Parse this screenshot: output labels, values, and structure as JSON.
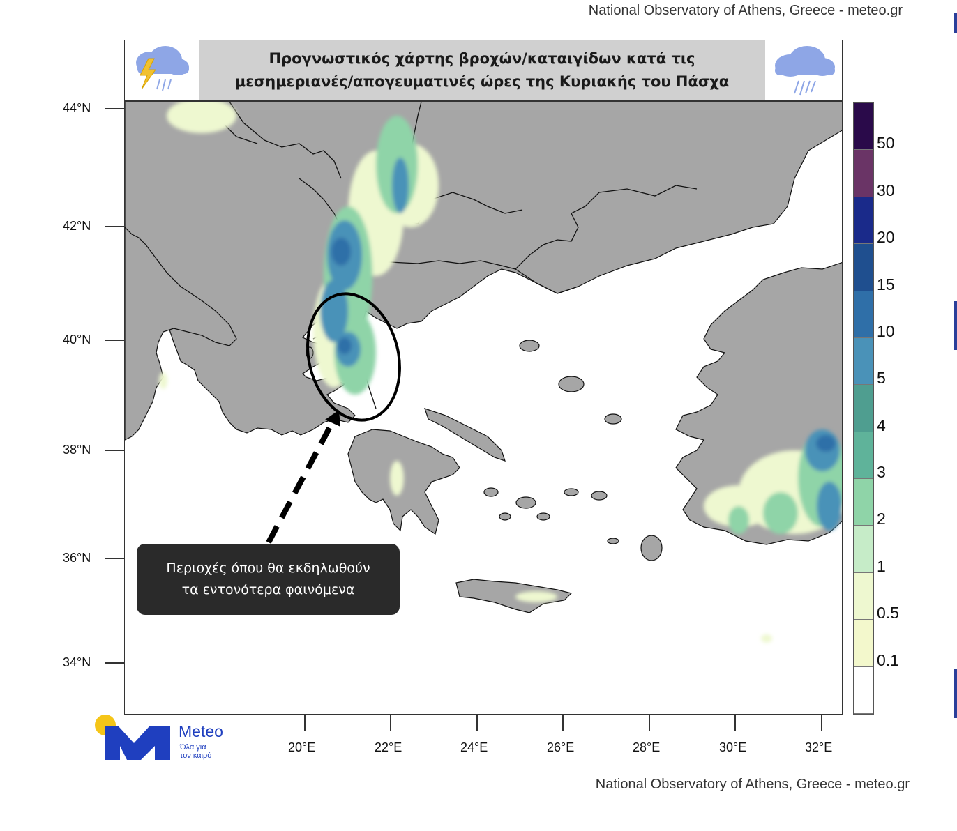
{
  "credits": {
    "top": "National Observatory of Athens, Greece - meteo.gr",
    "bottom": "National Observatory of Athens, Greece - meteo.gr"
  },
  "title": {
    "line1": "Προγνωστικός χάρτης βροχών/καταιγίδων κατά τις",
    "line2": "μεσημεριανές/απογευματινές ώρες της Κυριακής του Πάσχα"
  },
  "icons": {
    "left": "thunderstorm-rain-cloud-icon",
    "right": "rain-cloud-icon"
  },
  "axes": {
    "latitude_labels": [
      "44°N",
      "42°N",
      "40°N",
      "38°N",
      "36°N",
      "34°N"
    ],
    "longitude_labels": [
      "20°E",
      "22°E",
      "24°E",
      "26°E",
      "28°E",
      "30°E",
      "32°E"
    ]
  },
  "legend": {
    "labels": [
      "50",
      "30",
      "20",
      "15",
      "10",
      "5",
      "4",
      "3",
      "2",
      "1",
      "0.5",
      "0.1"
    ],
    "colors": [
      "#2a0a4a",
      "#6a3466",
      "#1a2a8a",
      "#1f4f8f",
      "#2f6fa8",
      "#4a92b8",
      "#4f9e90",
      "#5fb39a",
      "#8fd4a8",
      "#c6ecc8",
      "#eef8d0",
      "#f3f8cc",
      "#ffffff"
    ]
  },
  "callout": {
    "line1": "Περιοχές όπου θα εκδηλωθούν",
    "line2": "τα εντονότερα φαινόμενα"
  },
  "logo": {
    "name": "Meteo",
    "tagline_line1": "Όλα για",
    "tagline_line2": "τον καιρό"
  },
  "map_colors": {
    "land": "#a6a6a6",
    "sea": "#ffffff",
    "border": "#111111"
  }
}
